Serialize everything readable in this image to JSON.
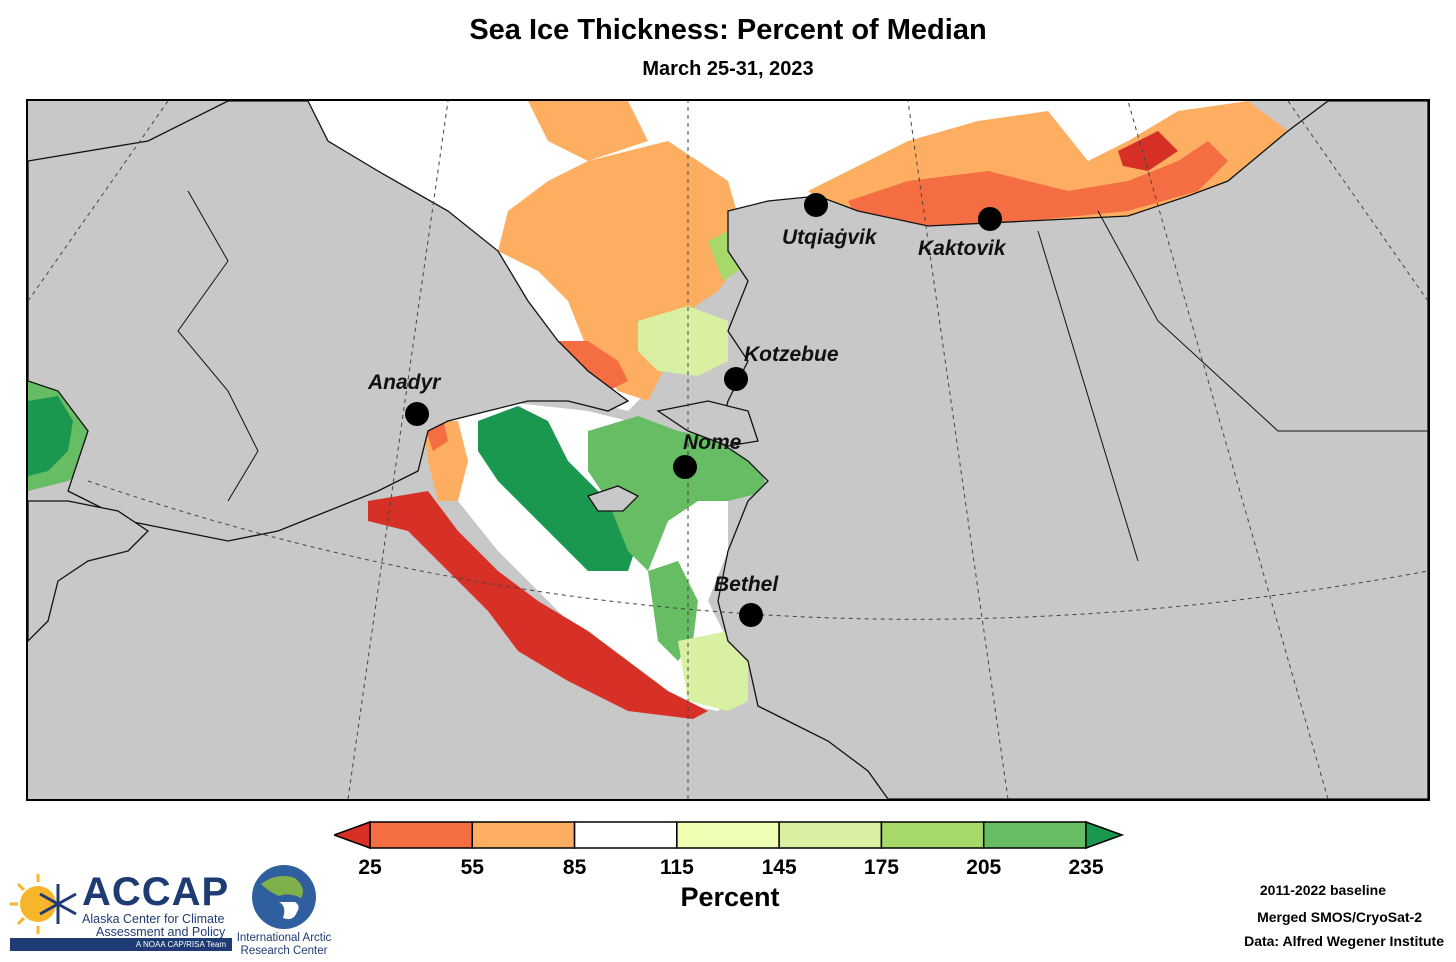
{
  "header": {
    "title": "Sea Ice Thickness: Percent of Median",
    "subtitle": "March 25-31, 2023"
  },
  "map": {
    "land_color": "#c8c8c8",
    "cities": [
      {
        "name": "Utqiagvik",
        "label": "Utqiaġvik"
      },
      {
        "name": "Kaktovik",
        "label": "Kaktovik"
      },
      {
        "name": "Kotzebue",
        "label": "Kotzebue"
      },
      {
        "name": "Anadyr",
        "label": "Anadyr"
      },
      {
        "name": "Nome",
        "label": "Nome"
      },
      {
        "name": "Bethel",
        "label": "Bethel"
      }
    ]
  },
  "colorbar": {
    "title": "Percent",
    "ticks": [
      "25",
      "55",
      "85",
      "115",
      "145",
      "175",
      "205",
      "235"
    ],
    "bins": [
      {
        "from": 25,
        "to": 55,
        "color": "#f46d43"
      },
      {
        "from": 55,
        "to": 85,
        "color": "#fdae61"
      },
      {
        "from": 85,
        "to": 115,
        "color": "#ffffff"
      },
      {
        "from": 115,
        "to": 145,
        "color": "#efffb3"
      },
      {
        "from": 145,
        "to": 175,
        "color": "#d9f0a3"
      },
      {
        "from": 175,
        "to": 205,
        "color": "#a6d96a"
      },
      {
        "from": 205,
        "to": 235,
        "color": "#66bd63"
      }
    ],
    "under_color": "#d73027",
    "over_color": "#1a9850"
  },
  "logos": {
    "accap": {
      "name": "ACCAP",
      "line1": "Alaska Center for Climate",
      "line2": "Assessment and Policy",
      "band": "A NOAA CAP/RISA Team"
    },
    "iarc": {
      "line1": "International Arctic",
      "line2": "Research Center"
    }
  },
  "credits": {
    "baseline": "2011-2022 baseline",
    "product": "Merged SMOS/CryoSat-2",
    "source": "Data: Alfred Wegener Institute"
  }
}
